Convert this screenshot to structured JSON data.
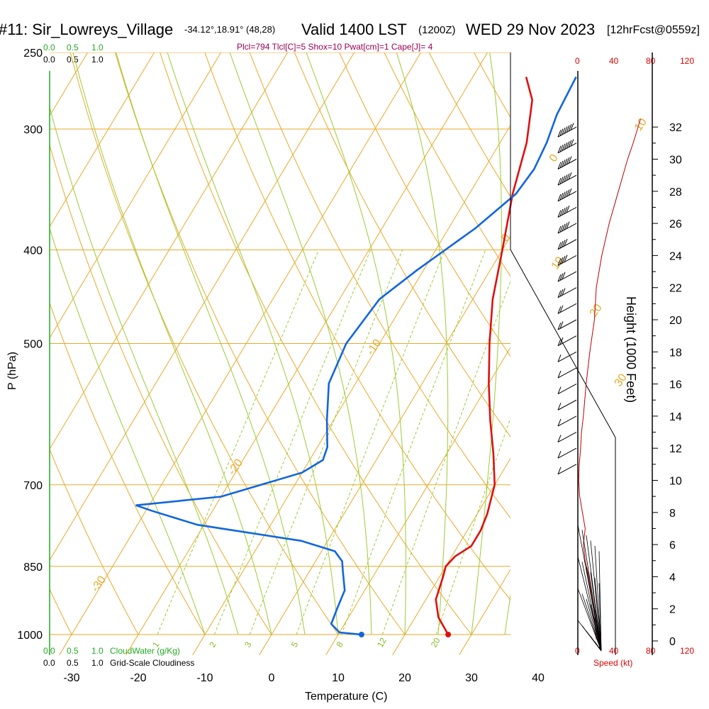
{
  "header": {
    "station": "#11: Sir_Lowreys_Village",
    "coords": "-34.12°,18.91° (48,28)",
    "valid": "Valid 1400 LST",
    "zulu": "(1200Z)",
    "date": "WED 29 Nov 2023",
    "forecast": "[12hrFcst@0559z]"
  },
  "params": "Plcl=794 Tlcl[C]=5 Shox=10 Pwat[cm]=1 Cape[J]= 4",
  "cloud_scales": {
    "top_green": [
      "0.0",
      "0.5",
      "1.0"
    ],
    "top_black": [
      "0.0",
      "0.5",
      "1.0"
    ],
    "bottom_green": [
      "0.0",
      "0.5",
      "1.0"
    ],
    "bottom_green_label": "CloudWater (g/Kg)",
    "bottom_black": [
      "0.0",
      "0.5",
      "1.0"
    ],
    "bottom_black_label": "Grid-Scale Cloudiness"
  },
  "speed_scale": {
    "top": [
      "0",
      "40",
      "80",
      "120"
    ],
    "bottom": [
      "0",
      "40",
      "80",
      "120"
    ],
    "label": "Speed (kt)"
  },
  "colors": {
    "isotherm": "#e8a92a",
    "dry_adiabat": "#e8a92a",
    "moist_adiabat": "#99cc33",
    "mixing_ratio": "#99cc33",
    "temperature": "#dd1111",
    "dewpoint": "#1166dd",
    "speed": "#bb0000"
  },
  "chart_data": {
    "type": "line",
    "title": "#11: Sir_Lowreys_Village",
    "xlabel": "Temperature (C)",
    "ylabel": "P (hPa)",
    "y2label": "Height (1000 Feet)",
    "x_ticks": [
      -30,
      -20,
      -10,
      0,
      10,
      20,
      30,
      40
    ],
    "p_ticks": [
      1000,
      850,
      700,
      500,
      400,
      300,
      250
    ],
    "height_ticks": [
      0,
      2,
      4,
      6,
      8,
      10,
      12,
      14,
      16,
      18,
      20,
      22,
      24,
      26,
      28,
      30,
      32
    ],
    "isotherm_labels": [
      {
        "t": 0,
        "p": 325,
        "text": "0"
      },
      {
        "t": 10,
        "p": 420,
        "text": "10"
      },
      {
        "t": 20,
        "p": 470,
        "text": "20"
      },
      {
        "t": 30,
        "p": 555,
        "text": "30"
      },
      {
        "t": 10,
        "p": 302,
        "text": "10"
      },
      {
        "t": 0,
        "p": 393,
        "text": "0"
      },
      {
        "t": -10,
        "p": 515,
        "text": "-10"
      },
      {
        "t": -20,
        "p": 685,
        "text": "-20"
      },
      {
        "t": -30,
        "p": 905,
        "text": "-30"
      }
    ],
    "mixing_ratio_labels": [
      "1",
      "2",
      "3",
      "5",
      "8",
      "12",
      "20"
    ],
    "series": [
      {
        "name": "Temperature",
        "points": [
          [
            26.5,
            1000
          ],
          [
            23.5,
            960
          ],
          [
            21.5,
            920
          ],
          [
            20.5,
            870
          ],
          [
            20,
            850
          ],
          [
            20.5,
            830
          ],
          [
            22,
            810
          ],
          [
            22,
            780
          ],
          [
            21.5,
            750
          ],
          [
            20,
            700
          ],
          [
            17,
            650
          ],
          [
            13.5,
            600
          ],
          [
            10,
            550
          ],
          [
            6.5,
            500
          ],
          [
            3,
            450
          ],
          [
            0,
            400
          ],
          [
            -3.5,
            350
          ],
          [
            -6,
            310
          ],
          [
            -9,
            280
          ],
          [
            -12,
            265
          ]
        ]
      },
      {
        "name": "Dewpoint",
        "points": [
          [
            13.5,
            1000
          ],
          [
            10,
            995
          ],
          [
            8,
            975
          ],
          [
            7.5,
            940
          ],
          [
            7,
            900
          ],
          [
            5,
            860
          ],
          [
            4,
            840
          ],
          [
            2,
            820
          ],
          [
            -4,
            800
          ],
          [
            -21,
            770
          ],
          [
            -29,
            745
          ],
          [
            -32,
            735
          ],
          [
            -20,
            720
          ],
          [
            -10,
            680
          ],
          [
            -8,
            660
          ],
          [
            -8.5,
            640
          ],
          [
            -11,
            600
          ],
          [
            -14,
            550
          ],
          [
            -15,
            500
          ],
          [
            -14,
            450
          ],
          [
            -11,
            420
          ],
          [
            -6,
            380
          ],
          [
            -3,
            350
          ],
          [
            -2.5,
            330
          ],
          [
            -3,
            310
          ],
          [
            -4,
            290
          ],
          [
            -4.5,
            265
          ]
        ]
      }
    ],
    "surface_points": [
      {
        "name": "surface-temperature",
        "t": 26.5,
        "p": 1000
      },
      {
        "name": "surface-dewpoint",
        "t": 13.5,
        "p": 1000
      }
    ],
    "speed_profile_kt": [
      [
        0.1,
        20
      ],
      [
        1,
        19
      ],
      [
        2,
        18
      ],
      [
        3,
        15
      ],
      [
        4,
        12
      ],
      [
        5,
        8
      ],
      [
        6,
        6
      ],
      [
        7,
        8
      ],
      [
        8,
        5
      ],
      [
        9,
        2
      ],
      [
        10,
        1
      ],
      [
        11,
        1.5
      ],
      [
        12,
        3
      ],
      [
        13,
        4
      ],
      [
        14,
        6
      ],
      [
        16,
        9
      ],
      [
        18,
        13
      ],
      [
        20,
        18
      ],
      [
        22,
        20
      ],
      [
        24,
        26
      ],
      [
        26,
        34
      ],
      [
        28,
        44
      ],
      [
        30,
        54
      ],
      [
        31,
        60
      ],
      [
        32.5,
        68
      ]
    ],
    "wind_barbs": [
      {
        "h": 32,
        "spd": 70
      },
      {
        "h": 31,
        "spd": 70
      },
      {
        "h": 30,
        "spd": 65
      },
      {
        "h": 29,
        "spd": 60
      },
      {
        "h": 28,
        "spd": 60
      },
      {
        "h": 27,
        "spd": 55
      },
      {
        "h": 26,
        "spd": 50
      },
      {
        "h": 25,
        "spd": 45
      },
      {
        "h": 24,
        "spd": 40
      },
      {
        "h": 23,
        "spd": 35
      },
      {
        "h": 22,
        "spd": 30
      },
      {
        "h": 21,
        "spd": 25
      },
      {
        "h": 20,
        "spd": 25
      },
      {
        "h": 19,
        "spd": 20
      },
      {
        "h": 18,
        "spd": 15
      },
      {
        "h": 17,
        "spd": 10
      },
      {
        "h": 16,
        "spd": 10
      },
      {
        "h": 15,
        "spd": 10
      },
      {
        "h": 14,
        "spd": 10
      },
      {
        "h": 13,
        "spd": 10
      },
      {
        "h": 12,
        "spd": 10
      },
      {
        "h": 11,
        "spd": 10
      }
    ]
  }
}
